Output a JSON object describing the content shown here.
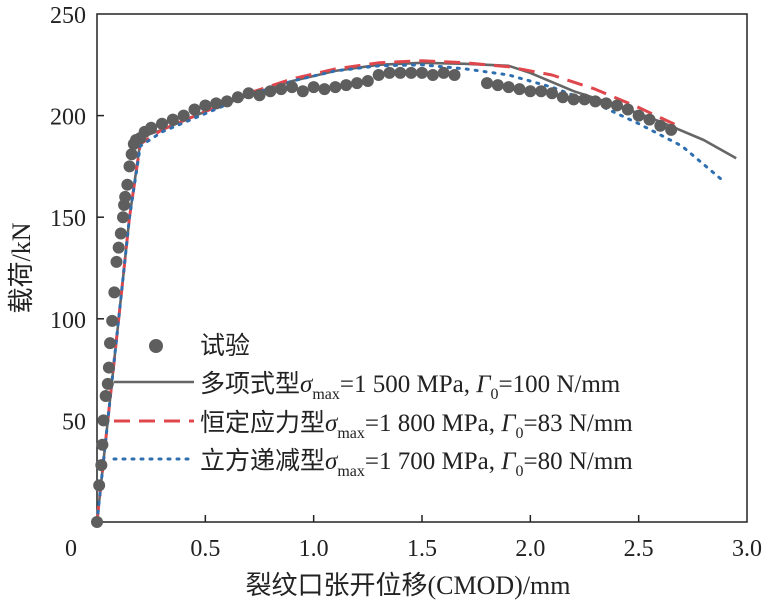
{
  "chart_data": {
    "type": "line",
    "title": "",
    "xlabel": "裂纹口张开位移(CMOD)/mm",
    "ylabel": "载荷/kN",
    "xlim": [
      0,
      3.0
    ],
    "ylim": [
      0,
      250
    ],
    "xticks": [
      0,
      0.5,
      1.0,
      1.5,
      2.0,
      2.5,
      3.0
    ],
    "xtick_labels": [
      "0",
      "0.5",
      "1.0",
      "1.5",
      "2.0",
      "2.5",
      "3.0"
    ],
    "yticks": [
      50,
      100,
      150,
      200,
      250
    ],
    "ytick_labels": [
      "50",
      "100",
      "150",
      "200",
      "250"
    ],
    "grid": false,
    "legend_position": "bottom-right",
    "colors": {
      "experiment": "#5e5e5e",
      "polynomial": "#666666",
      "constant": "#e0474c",
      "cubic": "#2f6fb0"
    },
    "legend": [
      {
        "key": "experiment",
        "text": "试验",
        "param": "",
        "tail": "",
        "symbol": "marker"
      },
      {
        "key": "polynomial",
        "text": "多项式型",
        "param": "=1 500 MPa, ",
        "tail": "=100 N/mm",
        "symbol": "solid"
      },
      {
        "key": "constant",
        "text": "恒定应力型",
        "param": "=1 800 MPa, ",
        "tail": "=83 N/mm",
        "symbol": "dashed"
      },
      {
        "key": "cubic",
        "text": "立方递减型",
        "param": "=1 700 MPa, ",
        "tail": "=80 N/mm",
        "symbol": "dotted"
      }
    ],
    "legend_symbols": {
      "sigma": "σ",
      "sigma_sub": "max",
      "gamma": "Γ",
      "gamma_sub": "0"
    },
    "series": [
      {
        "name": "多项式型",
        "key": "polynomial",
        "style": "solid",
        "x": [
          0,
          0.05,
          0.1,
          0.15,
          0.2,
          0.22,
          0.3,
          0.5,
          0.7,
          0.9,
          1.1,
          1.3,
          1.5,
          1.7,
          1.9,
          2.0,
          2.2,
          2.4,
          2.6,
          2.8,
          2.95
        ],
        "y": [
          0,
          50,
          100,
          150,
          187,
          190,
          193,
          202,
          210,
          217,
          222,
          225,
          226,
          225.5,
          224.5,
          221,
          212,
          205,
          197,
          188,
          179
        ]
      },
      {
        "name": "恒定应力型",
        "key": "constant",
        "style": "dashed",
        "x": [
          0,
          0.05,
          0.1,
          0.15,
          0.2,
          0.3,
          0.5,
          0.7,
          0.9,
          1.1,
          1.3,
          1.5,
          1.7,
          1.9,
          2.1,
          2.3,
          2.5,
          2.7
        ],
        "y": [
          0,
          50,
          100,
          150,
          186,
          193,
          202,
          211,
          218,
          223,
          226,
          227,
          226,
          224,
          220,
          213,
          204,
          194
        ]
      },
      {
        "name": "立方递减型",
        "key": "cubic",
        "style": "dotted",
        "x": [
          0,
          0.05,
          0.1,
          0.15,
          0.2,
          0.3,
          0.5,
          0.7,
          0.9,
          1.1,
          1.3,
          1.5,
          1.7,
          1.9,
          2.1,
          2.3,
          2.5,
          2.7,
          2.9
        ],
        "y": [
          0,
          50,
          100,
          150,
          185,
          192,
          201,
          210,
          217,
          222,
          224.5,
          225,
          223,
          220,
          214,
          206,
          196,
          185,
          167
        ]
      },
      {
        "name": "试验",
        "key": "experiment",
        "style": "scatter",
        "x": [
          0.0,
          0.01,
          0.02,
          0.025,
          0.03,
          0.04,
          0.05,
          0.055,
          0.06,
          0.07,
          0.08,
          0.09,
          0.1,
          0.11,
          0.12,
          0.125,
          0.13,
          0.14,
          0.15,
          0.16,
          0.17,
          0.18,
          0.2,
          0.22,
          0.25,
          0.3,
          0.35,
          0.4,
          0.45,
          0.5,
          0.55,
          0.6,
          0.65,
          0.7,
          0.75,
          0.8,
          0.85,
          0.9,
          0.95,
          1.0,
          1.05,
          1.1,
          1.15,
          1.2,
          1.25,
          1.3,
          1.35,
          1.4,
          1.45,
          1.5,
          1.55,
          1.6,
          1.65,
          1.8,
          1.85,
          1.9,
          1.95,
          2.0,
          2.05,
          2.1,
          2.15,
          2.2,
          2.25,
          2.3,
          2.35,
          2.4,
          2.45,
          2.5,
          2.55,
          2.6,
          2.65
        ],
        "y": [
          0,
          18,
          28,
          38,
          50,
          62,
          68,
          76,
          88,
          99,
          113,
          128,
          135,
          142,
          150,
          156,
          160,
          166,
          175,
          181,
          186,
          188,
          189,
          192,
          194,
          196,
          198,
          200,
          203,
          205,
          206,
          207,
          209,
          211,
          210,
          212,
          213,
          214,
          212,
          214,
          213,
          214,
          215,
          216,
          217,
          220,
          221,
          221,
          221,
          221,
          220,
          221,
          220,
          216,
          215,
          214,
          213,
          212,
          212,
          211,
          209,
          208,
          208,
          207,
          206,
          205,
          203,
          200,
          198,
          195,
          193
        ]
      }
    ]
  }
}
